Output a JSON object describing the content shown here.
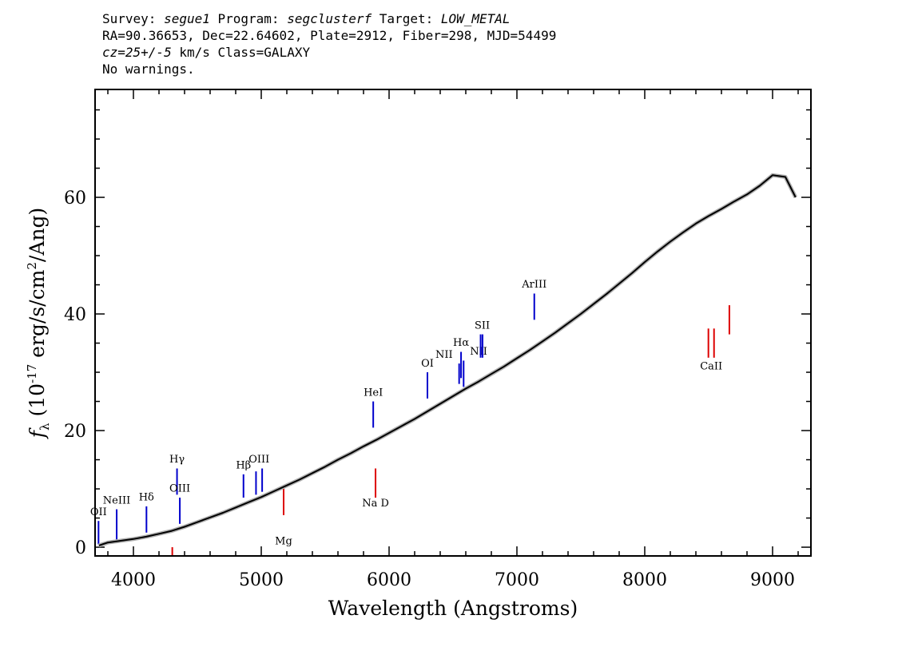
{
  "header": {
    "survey_label": "Survey: ",
    "survey": "segue1",
    "program_label": " Program: ",
    "program": "segclusterf",
    "target_label": " Target: ",
    "target": "LOW_METAL",
    "line2": "RA=90.36653, Dec=22.64602, Plate=2912, Fiber=298, MJD=54499",
    "cz": "cz=25+/-5",
    "line3_rest": " km/s Class=GALAXY",
    "line4": "No warnings."
  },
  "colors": {
    "emission": "#0000cc",
    "absorption": "#dd0000",
    "spectrum": "#000000",
    "error": "#b0b0b0"
  },
  "chart_data": {
    "type": "line",
    "xlabel": "Wavelength (Angstroms)",
    "ylabel": "f_λ (10^-17 erg/s/cm^2/Ang)",
    "xlim": [
      3700,
      9300
    ],
    "ylim": [
      -1.5,
      78.5
    ],
    "xticks": [
      4000,
      5000,
      6000,
      7000,
      8000,
      9000
    ],
    "xtick_labels": [
      "4000",
      "5000",
      "6000",
      "7000",
      "8000",
      "9000"
    ],
    "yticks": [
      0,
      20,
      40,
      60
    ],
    "ytick_labels": [
      "0",
      "20",
      "40",
      "60"
    ],
    "grid": false,
    "series": [
      {
        "x": [
          3730,
          3800,
          3900,
          4000,
          4100,
          4200,
          4300,
          4400,
          4500,
          4600,
          4700,
          4800,
          4900,
          5000,
          5100,
          5200,
          5300,
          5400,
          5500,
          5600,
          5700,
          5800,
          5900,
          6000,
          6100,
          6200,
          6300,
          6400,
          6500,
          6600,
          6700,
          6800,
          6900,
          7000,
          7100,
          7200,
          7300,
          7400,
          7500,
          7600,
          7700,
          7800,
          7900,
          8000,
          8100,
          8200,
          8300,
          8400,
          8500,
          8600,
          8700,
          8800,
          8900,
          9000,
          9100,
          9180
        ],
        "y": [
          0.3,
          0.8,
          1.1,
          1.4,
          1.8,
          2.3,
          2.8,
          3.5,
          4.3,
          5.1,
          5.9,
          6.8,
          7.7,
          8.6,
          9.6,
          10.6,
          11.6,
          12.7,
          13.8,
          15.0,
          16.1,
          17.3,
          18.4,
          19.6,
          20.8,
          22.0,
          23.3,
          24.6,
          25.9,
          27.2,
          28.4,
          29.7,
          31.0,
          32.4,
          33.8,
          35.3,
          36.8,
          38.4,
          40.0,
          41.7,
          43.4,
          45.2,
          47.0,
          48.9,
          50.7,
          52.4,
          54.0,
          55.5,
          56.8,
          58.0,
          59.3,
          60.5,
          62.0,
          63.8,
          63.5,
          60.0
        ]
      }
    ],
    "lines": [
      {
        "label": "OII",
        "x": 3727,
        "y0": 0.5,
        "y1": 4.5,
        "kind": "emission",
        "label_y": 5.5
      },
      {
        "label": "NeIII",
        "x": 3869,
        "y0": 1.0,
        "y1": 6.5,
        "kind": "emission",
        "label_y": 7.5
      },
      {
        "label": "Hδ",
        "x": 4102,
        "y0": 2.5,
        "y1": 7.0,
        "kind": "emission",
        "label_y": 8.0
      },
      {
        "label": "Hγ",
        "x": 4341,
        "y0": 9.0,
        "y1": 13.5,
        "kind": "emission",
        "label_y": 14.5
      },
      {
        "label": "OIII",
        "x": 4363,
        "y0": 4.0,
        "y1": 8.5,
        "kind": "emission",
        "label_y": 9.5
      },
      {
        "label": "Hβ",
        "x": 4861,
        "y0": 8.5,
        "y1": 12.5,
        "kind": "emission",
        "label_y": 13.5
      },
      {
        "label": "OIII",
        "x": 4959,
        "y0": 9.0,
        "y1": 13.0,
        "kind": "emission",
        "label_y": 14.5
      },
      {
        "label": "",
        "x": 5007,
        "y0": 9.5,
        "y1": 13.5,
        "kind": "emission"
      },
      {
        "label": "HeI",
        "x": 5876,
        "y0": 20.5,
        "y1": 25.0,
        "kind": "emission",
        "label_y": 26.0
      },
      {
        "label": "OI",
        "x": 6300,
        "y0": 25.5,
        "y1": 30.0,
        "kind": "emission",
        "label_y": 31.0
      },
      {
        "label": "NII",
        "x": 6548,
        "y0": 28.0,
        "y1": 31.5,
        "kind": "emission",
        "label_y": 32.5
      },
      {
        "label": "Hα",
        "x": 6563,
        "y0": 29.0,
        "y1": 33.5,
        "kind": "emission",
        "label_y": 34.5
      },
      {
        "label": "NII",
        "x": 6583,
        "y0": 27.5,
        "y1": 32.0,
        "kind": "emission",
        "label_y": 33.0
      },
      {
        "label": "SII",
        "x": 6716,
        "y0": 32.5,
        "y1": 36.5,
        "kind": "emission",
        "label_y": 37.5
      },
      {
        "label": "",
        "x": 6731,
        "y0": 32.5,
        "y1": 36.5,
        "kind": "emission"
      },
      {
        "label": "ArIII",
        "x": 7136,
        "y0": 39.0,
        "y1": 43.5,
        "kind": "emission",
        "label_y": 44.5
      },
      {
        "label": "",
        "x": 4304,
        "y0": -1.5,
        "y1": 0.0,
        "kind": "absorption"
      },
      {
        "label": "Mg",
        "x": 5175,
        "y0": 5.5,
        "y1": 10.5,
        "kind": "absorption",
        "label_y": 0.5
      },
      {
        "label": "Na D",
        "x": 5894,
        "y0": 8.5,
        "y1": 13.5,
        "kind": "absorption",
        "label_y": 7.0
      },
      {
        "label": "",
        "x": 8498,
        "y0": 32.5,
        "y1": 37.5,
        "kind": "absorption"
      },
      {
        "label": "CaII",
        "x": 8542,
        "y0": 32.5,
        "y1": 37.5,
        "kind": "absorption",
        "label_y": 30.5
      },
      {
        "label": "",
        "x": 8662,
        "y0": 36.5,
        "y1": 41.5,
        "kind": "absorption"
      }
    ]
  }
}
